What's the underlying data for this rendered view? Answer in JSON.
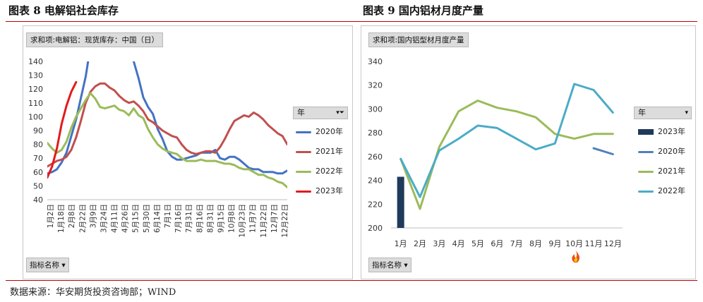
{
  "figure1": {
    "title": "图表 8 电解铝社会库存",
    "field_tag": "求和项:电解铝：现货库存：中国（日）",
    "filter_button": "指标名称",
    "legend_header": "年",
    "legend_header_icon": "filter-funnel-icon"
  },
  "figure2": {
    "title": "图表 9 国内铝材月度产量",
    "field_tag": "求和项:国内铝型材月度产量",
    "filter_button": "指标名称",
    "legend_header": "年",
    "annotation_icon": "flame-icon"
  },
  "source": "数据来源：华安期货投资咨询部；WIND",
  "chart_data": [
    {
      "type": "line",
      "ylim": [
        40,
        140
      ],
      "yticks": [
        40,
        50,
        60,
        70,
        80,
        90,
        100,
        110,
        120,
        130,
        140
      ],
      "categories": [
        "1月2日",
        "1月18日",
        "2月8日",
        "2月22日",
        "3月9日",
        "3月24日",
        "4月11日",
        "4月26日",
        "5月15日",
        "5月30日",
        "6月14日",
        "7月1日",
        "7月16日",
        "7月31日",
        "8月16日",
        "8月31日",
        "9月15日",
        "10月8日",
        "10月23日",
        "11月7日",
        "11月22日",
        "12月7日",
        "12月22日"
      ],
      "xlabel": "",
      "ylabel": "",
      "series": [
        {
          "name": "2020年",
          "color": "#4472c4",
          "x": [
            0,
            2,
            4,
            6,
            8,
            10,
            12,
            16,
            17,
            18,
            19,
            20,
            21,
            22,
            24,
            26,
            28,
            30,
            32,
            34,
            36,
            38,
            40,
            42,
            44,
            46,
            48,
            50,
            52,
            54,
            56,
            58,
            60,
            62,
            64,
            66,
            68,
            70,
            72,
            74,
            76,
            78,
            80,
            82,
            84,
            86,
            88,
            90,
            92,
            94,
            96,
            98,
            100
          ],
          "values": [
            59,
            60,
            62,
            67,
            74,
            86,
            98,
            129,
            140,
            null,
            null,
            null,
            null,
            null,
            null,
            null,
            null,
            null,
            null,
            null,
            140,
            128,
            114,
            107,
            102,
            91,
            84,
            75,
            71,
            69,
            69,
            70,
            71,
            72,
            74,
            74,
            74,
            76,
            70,
            69,
            71,
            71,
            69,
            66,
            63,
            62,
            62,
            60,
            60,
            60,
            59,
            59,
            61
          ]
        },
        {
          "name": "2021年",
          "color": "#c0504d",
          "x": [
            0,
            2,
            4,
            6,
            8,
            10,
            12,
            14,
            16,
            18,
            20,
            22,
            24,
            26,
            28,
            30,
            32,
            34,
            36,
            38,
            40,
            42,
            44,
            46,
            48,
            50,
            52,
            54,
            56,
            58,
            60,
            62,
            64,
            66,
            68,
            70,
            72,
            74,
            76,
            78,
            80,
            82,
            84,
            86,
            88,
            90,
            92,
            94,
            96,
            98,
            100
          ],
          "values": [
            64,
            66,
            68,
            69,
            71,
            76,
            85,
            97,
            110,
            118,
            122,
            124,
            124,
            121,
            119,
            115,
            112,
            110,
            111,
            108,
            104,
            98,
            96,
            93,
            90,
            88,
            86,
            85,
            80,
            76,
            74,
            73,
            74,
            75,
            75,
            74,
            78,
            84,
            91,
            97,
            99,
            101,
            100,
            103,
            101,
            98,
            94,
            91,
            88,
            86,
            80
          ]
        },
        {
          "name": "2022年",
          "color": "#9bbb59",
          "x": [
            0,
            2,
            4,
            6,
            8,
            10,
            12,
            14,
            16,
            18,
            20,
            22,
            24,
            26,
            28,
            30,
            32,
            34,
            36,
            38,
            40,
            42,
            44,
            46,
            48,
            50,
            52,
            54,
            56,
            58,
            60,
            62,
            64,
            66,
            68,
            70,
            72,
            74,
            76,
            78,
            80,
            82,
            84,
            86,
            88,
            90,
            92,
            94,
            96,
            98,
            100
          ],
          "values": [
            81,
            77,
            74,
            76,
            82,
            92,
            100,
            106,
            112,
            117,
            113,
            107,
            106,
            107,
            108,
            105,
            104,
            101,
            106,
            101,
            99,
            91,
            85,
            80,
            77,
            75,
            74,
            73,
            70,
            68,
            68,
            68,
            69,
            68,
            68,
            68,
            67,
            66,
            66,
            65,
            63,
            62,
            62,
            60,
            58,
            58,
            56,
            55,
            53,
            52,
            49
          ]
        },
        {
          "name": "2023年",
          "color": "#e31a1c",
          "x": [
            0,
            2,
            4,
            6,
            8,
            10,
            12
          ],
          "values": [
            56,
            64,
            77,
            95,
            108,
            118,
            125
          ]
        }
      ]
    },
    {
      "type": "line",
      "categories": [
        "1月",
        "2月",
        "3月",
        "4月",
        "5月",
        "6月",
        "7月",
        "8月",
        "9月",
        "10月",
        "11月",
        "12月"
      ],
      "ylim": [
        200,
        340
      ],
      "yticks": [
        200,
        220,
        240,
        260,
        280,
        300,
        320,
        340
      ],
      "xlabel": "",
      "ylabel": "",
      "series": [
        {
          "name": "2023年",
          "kind": "bar",
          "color": "#1f3a5a",
          "values": [
            243,
            null,
            null,
            null,
            null,
            null,
            null,
            null,
            null,
            null,
            null,
            null
          ]
        },
        {
          "name": "2020年",
          "kind": "line",
          "color": "#4f81bd",
          "values": [
            null,
            null,
            null,
            null,
            null,
            null,
            null,
            null,
            null,
            null,
            267,
            262
          ]
        },
        {
          "name": "2021年",
          "kind": "line",
          "color": "#9bbb59",
          "values": [
            258,
            216,
            268,
            298,
            307,
            301,
            298,
            293,
            279,
            275,
            279,
            279
          ]
        },
        {
          "name": "2022年",
          "kind": "line",
          "color": "#4bacc6",
          "values": [
            258,
            226,
            265,
            275,
            286,
            284,
            275,
            266,
            271,
            321,
            316,
            297
          ]
        }
      ]
    }
  ]
}
